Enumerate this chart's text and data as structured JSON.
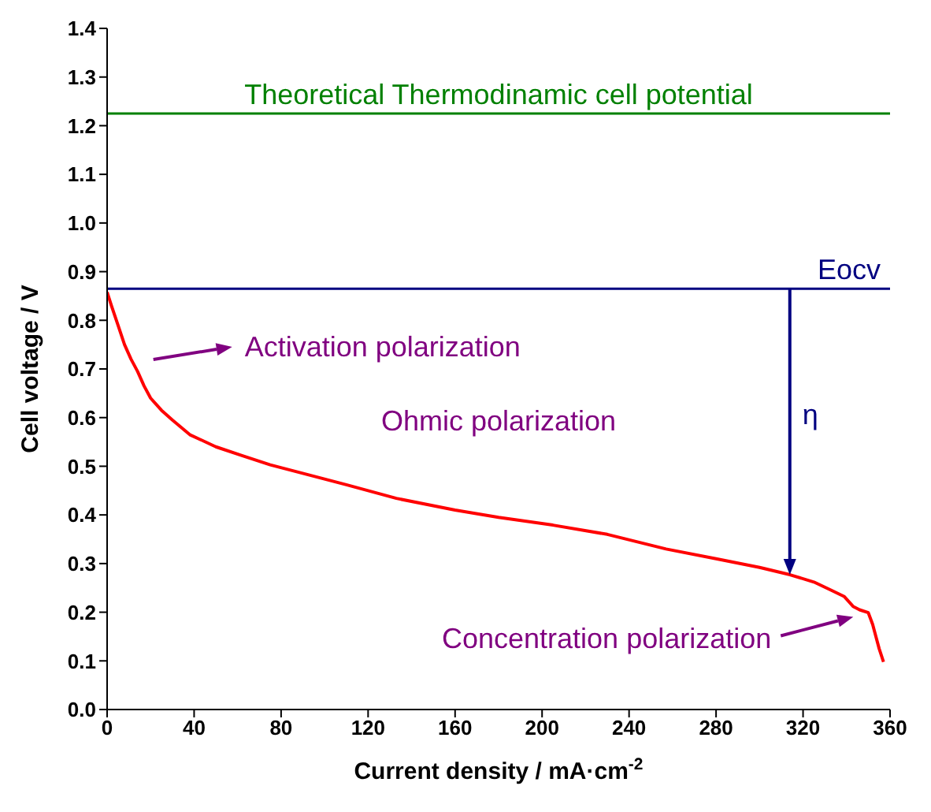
{
  "chart_data": {
    "type": "line",
    "xlabel": "Current density / mA·cm$^{-2}$",
    "ylabel": "Cell voltage / V",
    "x": [
      0,
      2,
      5,
      8,
      11,
      14,
      17,
      20,
      25,
      30,
      38,
      50,
      62,
      75,
      92,
      110,
      133,
      160,
      180,
      205,
      230,
      257,
      280,
      300,
      314,
      325,
      333,
      339,
      343,
      346,
      350,
      352,
      353.5,
      355,
      357
    ],
    "series": [
      {
        "color": "#ff0000",
        "values": [
          0.858,
          0.83,
          0.79,
          0.75,
          0.72,
          0.695,
          0.665,
          0.64,
          0.615,
          0.595,
          0.565,
          0.54,
          0.522,
          0.503,
          0.483,
          0.462,
          0.434,
          0.41,
          0.395,
          0.379,
          0.36,
          0.33,
          0.31,
          0.292,
          0.277,
          0.262,
          0.245,
          0.232,
          0.212,
          0.205,
          0.199,
          0.175,
          0.15,
          0.125,
          0.098
        ]
      }
    ],
    "xlim": [
      0,
      360
    ],
    "xticks": [
      0,
      40,
      80,
      120,
      160,
      200,
      240,
      280,
      320,
      360
    ],
    "ylim": [
      0,
      1.4
    ],
    "yticks": [
      {
        "value": 0,
        "label": "0.0"
      },
      0.1,
      0.2,
      0.3,
      0.4,
      0.5,
      0.6,
      0.7,
      0.8,
      0.9,
      {
        "value": 1,
        "label": "1.0"
      },
      1.1,
      1.2,
      1.3,
      1.4
    ],
    "ref_lines": [
      {
        "axis": "y",
        "value": 1.225,
        "label": "Theoretical Thermodinamic cell potential",
        "color": "#008000"
      },
      {
        "axis": "y",
        "value": 0.865,
        "label": "Eocv",
        "color": "#000080"
      }
    ],
    "annotations": [
      "Activation polarization",
      "Ohmic polarization",
      "η",
      "Concentration polarization"
    ],
    "marker": "none",
    "line_style": "solid"
  }
}
